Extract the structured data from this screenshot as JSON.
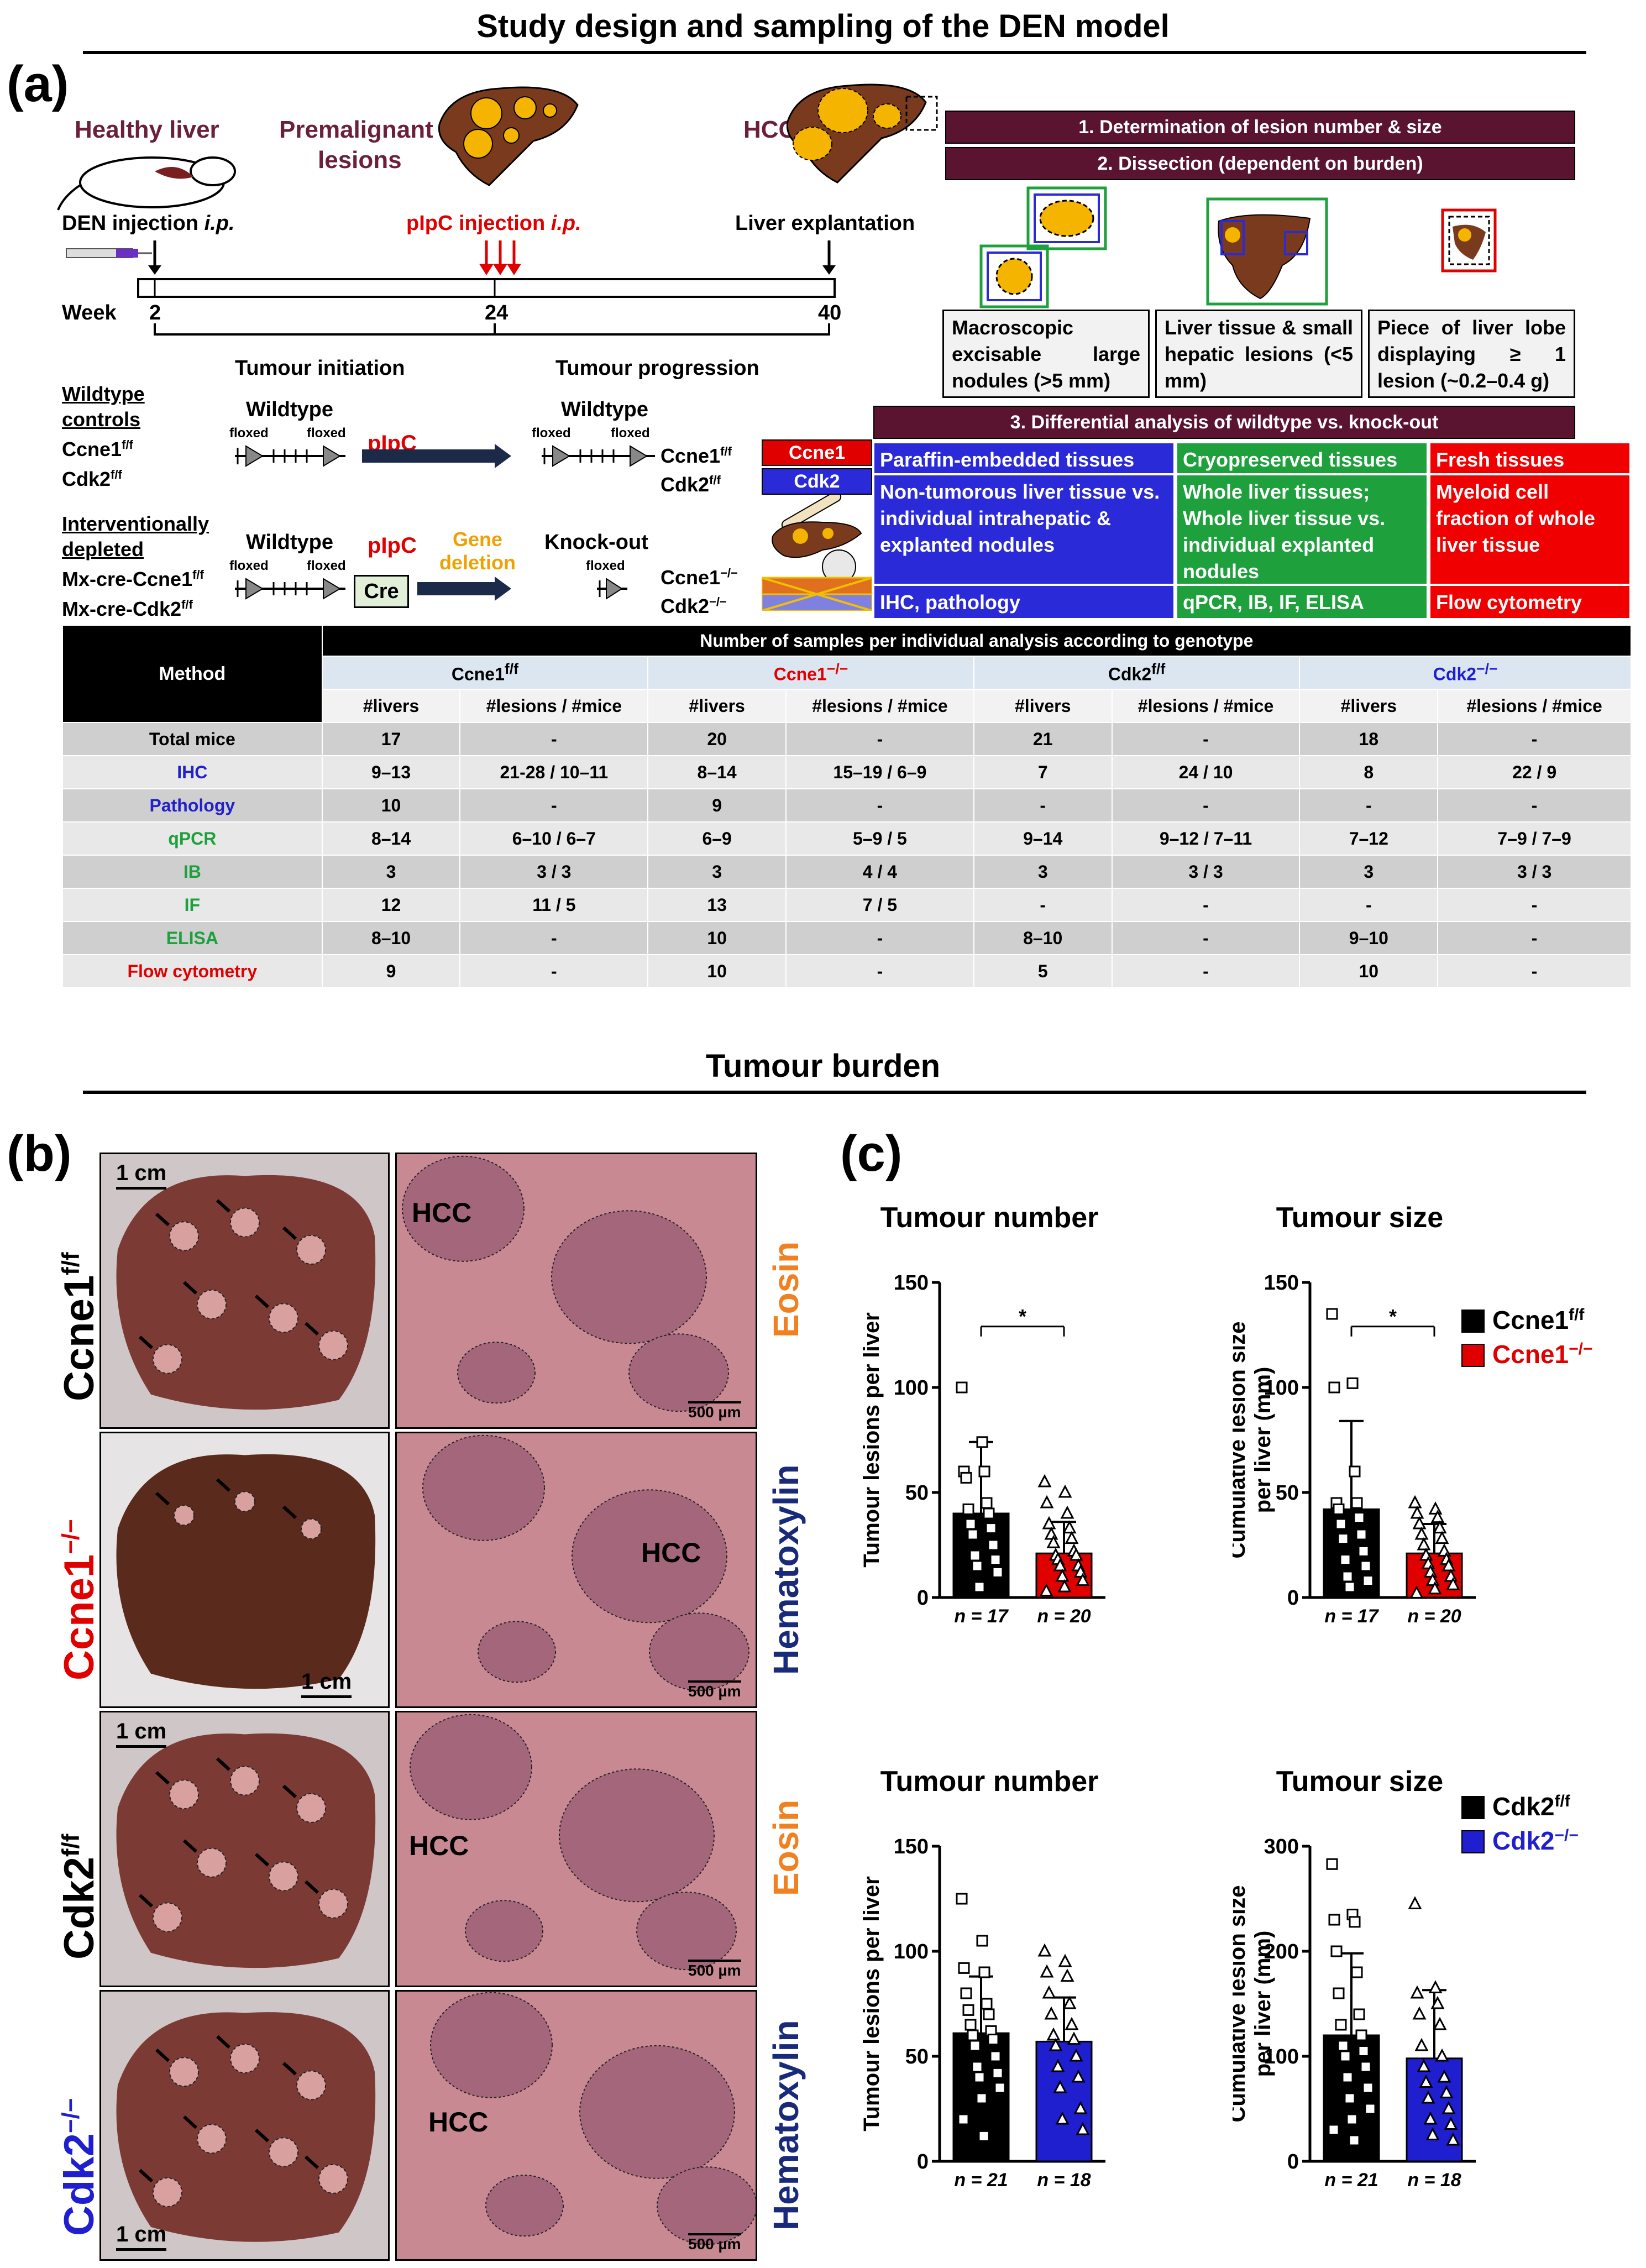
{
  "title_top": "Study design and sampling of the DEN model",
  "title_bottom": "Tumour burden",
  "panels": {
    "a": "(a)",
    "b": "(b)",
    "c": "(c)"
  },
  "design": {
    "healthy_liver": "Healthy liver",
    "premalignant_1": "Premalignant",
    "premalignant_2": "lesions",
    "hcc": "HCC",
    "den_injection": "DEN injection",
    "ip": "i.p.",
    "pipc_injection": "pIpC injection",
    "liver_explantation": "Liver explantation",
    "week_label": "Week",
    "weeks": [
      "2",
      "24",
      "40"
    ],
    "tumour_initiation": "Tumour initiation",
    "tumour_progression": "Tumour progression",
    "wt_controls_1": "Wildtype",
    "wt_controls_2": "controls",
    "ccne1ff": "Ccne1",
    "cdk2ff": "Cdk2",
    "ff": "f/f",
    "knock": "−/−",
    "interv_1": "Interventionally",
    "interv_2": "depleted",
    "mx_ccne1": "Mx-cre-Ccne1",
    "mx_cdk2": "Mx-cre-Cdk2",
    "wildtype": "Wildtype",
    "floxed": "floxed",
    "pipc": "pIpC",
    "cre": "Cre",
    "gene": "Gene",
    "deletion": "deletion",
    "knockout": "Knock-out",
    "tag_ccne1": "Ccne1",
    "tag_cdk2": "Cdk2",
    "step1": "1. Determination of lesion number & size",
    "step2": "2. Dissection (dependent on burden)",
    "step3": "3. Differential analysis of wildtype vs. knock-out",
    "box1": "Macroscopic excisable large nodules (>5 mm)",
    "box2": "Liver tissue & small hepatic lesions (<5 mm)",
    "box3": "Piece of liver lobe displaying ≥ 1 lesion (~0.2–0.4 g)",
    "blue_head": "Paraffin-embedded tissues",
    "blue_body": "Non-tumorous liver tissue vs. individual intrahepatic & explanted nodules",
    "blue_foot": "IHC, pathology",
    "green_head": "Cryopreserved tissues",
    "green_body": "Whole liver tissues; Whole liver tissue vs. individual explanted nodules",
    "green_foot": "qPCR, IB, IF, ELISA",
    "red_head": "Fresh tissues",
    "red_body": "Myeloid cell fraction of whole liver tissue",
    "red_foot": "Flow cytometry"
  },
  "table": {
    "caption": "Number of samples per individual analysis according to genotype",
    "method": "Method",
    "groups": [
      "Ccne1f/f",
      "Ccne1−/−",
      "Cdk2f/f",
      "Cdk2−/−"
    ],
    "group_colors": [
      "#000000",
      "#e00000",
      "#000000",
      "#1f1fd0"
    ],
    "subheads": [
      "#livers",
      "#lesions / #mice",
      "#livers",
      "#lesions / #mice",
      "#livers",
      "#lesions / #mice",
      "#livers",
      "#lesions / #mice"
    ],
    "rows": [
      {
        "name": "Total mice",
        "color": "#000000",
        "cells": [
          "17",
          "-",
          "20",
          "-",
          "21",
          "-",
          "18",
          "-"
        ]
      },
      {
        "name": "IHC",
        "color": "#2222cc",
        "cells": [
          "9–13",
          "21-28 / 10–11",
          "8–14",
          "15–19 / 6–9",
          "7",
          "24 / 10",
          "8",
          "22 / 9"
        ]
      },
      {
        "name": "Pathology",
        "color": "#2222cc",
        "cells": [
          "10",
          "-",
          "9",
          "-",
          "-",
          "-",
          "-",
          "-"
        ]
      },
      {
        "name": "qPCR",
        "color": "#1ea03c",
        "cells": [
          "8–14",
          "6–10 / 6–7",
          "6–9",
          "5–9 / 5",
          "9–14",
          "9–12 / 7–11",
          "7–12",
          "7–9 / 7–9"
        ]
      },
      {
        "name": "IB",
        "color": "#1ea03c",
        "cells": [
          "3",
          "3 / 3",
          "3",
          "4 / 4",
          "3",
          "3 / 3",
          "3",
          "3 / 3"
        ]
      },
      {
        "name": "IF",
        "color": "#1ea03c",
        "cells": [
          "12",
          "11 / 5",
          "13",
          "7 / 5",
          "-",
          "-",
          "-",
          "-"
        ]
      },
      {
        "name": "ELISA",
        "color": "#1ea03c",
        "cells": [
          "8–10",
          "-",
          "10",
          "-",
          "8–10",
          "-",
          "9–10",
          "-"
        ]
      },
      {
        "name": "Flow cytometry",
        "color": "#e00000",
        "cells": [
          "9",
          "-",
          "10",
          "-",
          "5",
          "-",
          "10",
          "-"
        ]
      }
    ]
  },
  "panel_b": {
    "scale_1cm": "1 cm",
    "scale_500": "500 µm",
    "hcc": "HCC",
    "eosin": "Eosin",
    "hematoxylin": "Hematoxylin",
    "rows": [
      {
        "gene": "Ccne1",
        "sup": "f/f",
        "color": "#000000"
      },
      {
        "gene": "Ccne1",
        "sup": "−/−",
        "color": "#e00000"
      },
      {
        "gene": "Cdk2",
        "sup": "f/f",
        "color": "#000000"
      },
      {
        "gene": "Cdk2",
        "sup": "−/−",
        "color": "#1f1fd0"
      }
    ]
  },
  "chart_data": [
    {
      "type": "bar",
      "title": "Tumour number",
      "ylabel": "Tumour lesions per liver",
      "ylim": [
        0,
        150
      ],
      "yticks": [
        "0",
        "50",
        "100",
        "150"
      ],
      "categories": [
        "n = 17",
        "n = 20"
      ],
      "values": [
        40,
        21
      ],
      "errors": [
        34,
        15
      ],
      "colors": [
        "#000000",
        "#e00000"
      ],
      "significance": "*",
      "points": [
        [
          100,
          74,
          60,
          60,
          57,
          45,
          42,
          40,
          35,
          33,
          30,
          25,
          20,
          18,
          15,
          12,
          5
        ],
        [
          55,
          50,
          45,
          40,
          35,
          33,
          30,
          28,
          26,
          22,
          20,
          20,
          18,
          15,
          15,
          12,
          10,
          8,
          5,
          3
        ]
      ]
    },
    {
      "type": "bar",
      "title": "Tumour size",
      "ylabel": "Cumulative lesion size per liver (mm)",
      "ylim": [
        0,
        150
      ],
      "yticks": [
        "0",
        "50",
        "100",
        "150"
      ],
      "categories": [
        "n = 17",
        "n = 20"
      ],
      "values": [
        42,
        21
      ],
      "errors": [
        42,
        14
      ],
      "colors": [
        "#000000",
        "#e00000"
      ],
      "significance": "*",
      "legend": [
        "Ccne1f/f",
        "Ccne1−/−"
      ],
      "points": [
        [
          135,
          102,
          100,
          60,
          45,
          45,
          42,
          38,
          35,
          30,
          28,
          22,
          18,
          15,
          10,
          8,
          5
        ],
        [
          45,
          42,
          40,
          38,
          35,
          33,
          30,
          28,
          25,
          22,
          20,
          18,
          16,
          15,
          12,
          10,
          8,
          6,
          4,
          2
        ]
      ]
    },
    {
      "type": "bar",
      "title": "Tumour number",
      "ylabel": "Tumour lesions per liver",
      "ylim": [
        0,
        150
      ],
      "yticks": [
        "0",
        "50",
        "100",
        "150"
      ],
      "categories": [
        "n = 21",
        "n = 18"
      ],
      "values": [
        61,
        57
      ],
      "errors": [
        27,
        21
      ],
      "colors": [
        "#000000",
        "#1f1fd0"
      ],
      "points": [
        [
          125,
          105,
          92,
          90,
          80,
          75,
          72,
          70,
          65,
          62,
          60,
          58,
          55,
          50,
          45,
          42,
          40,
          35,
          30,
          20,
          12
        ],
        [
          100,
          95,
          90,
          88,
          80,
          75,
          70,
          65,
          60,
          58,
          55,
          50,
          45,
          40,
          35,
          25,
          20,
          15
        ]
      ]
    },
    {
      "type": "bar",
      "title": "Tumour size",
      "ylabel": "Cumulative lesion size per liver (mm)",
      "ylim": [
        0,
        300
      ],
      "yticks": [
        "0",
        "100",
        "200",
        "300"
      ],
      "categories": [
        "n = 21",
        "n = 18"
      ],
      "values": [
        120,
        98
      ],
      "errors": [
        78,
        65
      ],
      "colors": [
        "#000000",
        "#1f1fd0"
      ],
      "legend": [
        "Cdk2f/f",
        "Cdk2−/−"
      ],
      "points": [
        [
          283,
          235,
          230,
          228,
          200,
          180,
          160,
          140,
          130,
          120,
          110,
          105,
          100,
          90,
          80,
          70,
          60,
          50,
          40,
          30,
          20
        ],
        [
          245,
          165,
          160,
          150,
          140,
          130,
          110,
          100,
          90,
          80,
          75,
          65,
          60,
          50,
          40,
          35,
          25,
          20
        ]
      ]
    }
  ]
}
